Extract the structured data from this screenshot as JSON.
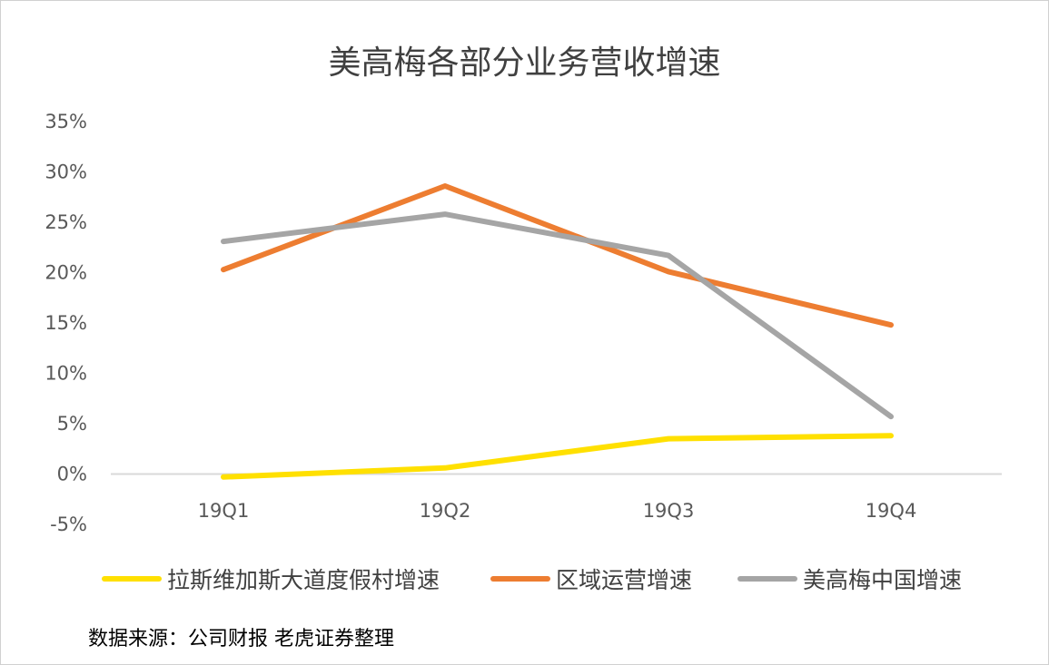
{
  "chart_data": {
    "type": "line",
    "title": "美高梅各部分业务营收增速",
    "categories": [
      "19Q1",
      "19Q2",
      "19Q3",
      "19Q4"
    ],
    "y_ticks": [
      "35%",
      "30%",
      "25%",
      "20%",
      "15%",
      "10%",
      "5%",
      "0%",
      "-5%"
    ],
    "ylim": [
      -5,
      35
    ],
    "grid": false,
    "legend_position": "bottom",
    "series": [
      {
        "name": "拉斯维加斯大道度假村增速",
        "color": "#FFE000",
        "values": [
          -0.3,
          0.6,
          3.5,
          3.8
        ]
      },
      {
        "name": "区域运营增速",
        "color": "#ED7D31",
        "values": [
          20.3,
          28.6,
          20.1,
          14.8
        ]
      },
      {
        "name": "美高梅中国增速",
        "color": "#A5A5A5",
        "values": [
          23.1,
          25.8,
          21.7,
          5.7
        ]
      }
    ]
  },
  "source_note": "数据来源：公司财报 老虎证券整理"
}
